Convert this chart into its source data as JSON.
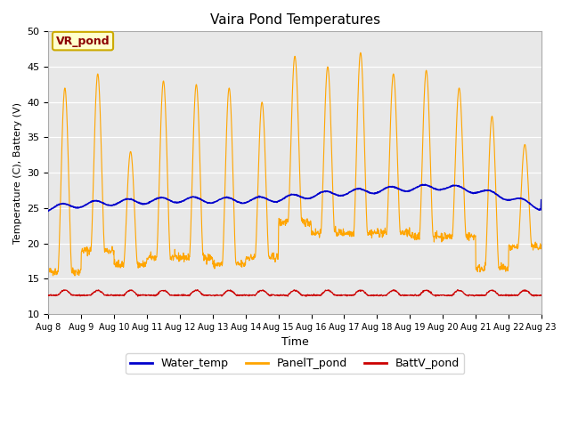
{
  "title": "Vaira Pond Temperatures",
  "xlabel": "Time",
  "ylabel": "Temperature (C), Battery (V)",
  "ylim": [
    10,
    50
  ],
  "xlim": [
    0,
    15
  ],
  "background_color": "#e8e8e8",
  "annotation_text": "VR_pond",
  "annotation_color": "#8b0000",
  "annotation_bg": "#ffffcc",
  "annotation_border": "#ccaa00",
  "water_color": "#0000cc",
  "panel_color": "#ffa500",
  "batt_color": "#cc0000",
  "legend_labels": [
    "Water_temp",
    "PanelT_pond",
    "BattV_pond"
  ],
  "x_tick_labels": [
    "Aug 8",
    "Aug 9",
    "Aug 10",
    "Aug 11",
    "Aug 12",
    "Aug 13",
    "Aug 14",
    "Aug 15",
    "Aug 16",
    "Aug 17",
    "Aug 18",
    "Aug 19",
    "Aug 20",
    "Aug 21",
    "Aug 22",
    "Aug 23"
  ],
  "yticks": [
    10,
    15,
    20,
    25,
    30,
    35,
    40,
    45,
    50
  ]
}
